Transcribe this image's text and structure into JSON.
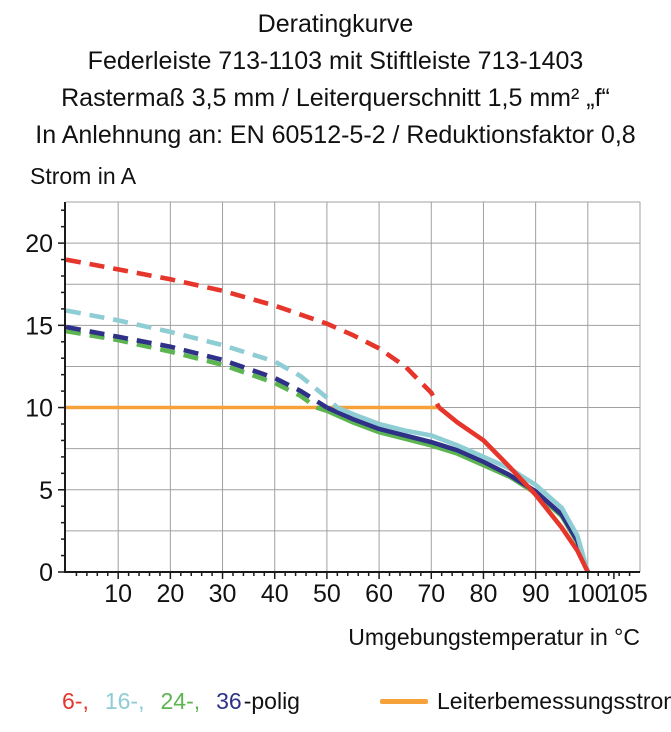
{
  "header": {
    "lines": [
      "Deratingkurve",
      "Federleiste 713-1103 mit Stiftleiste 713-1403",
      "Rastermaß 3,5 mm / Leiterquerschnitt 1,5 mm² „f“",
      "In Anlehnung an: EN 60512-5-2 / Reduktionsfaktor 0,8"
    ]
  },
  "chart_data": {
    "type": "line",
    "title": "Deratingkurve",
    "xlabel": "Umgebungstemperatur in °C",
    "ylabel": "Strom in A",
    "xlim": [
      0,
      110
    ],
    "ylim": [
      0,
      22.5
    ],
    "grid": {
      "on": true,
      "x_step": 10,
      "y_step": 2.5,
      "color": "#a0a0a0"
    },
    "axis_color": "#1a1a1a",
    "x_major_ticks": [
      10,
      20,
      30,
      40,
      50,
      60,
      70,
      80,
      90,
      100,
      105
    ],
    "x_minor_step": 2,
    "y_major_ticks": [
      0,
      5,
      10,
      15,
      20
    ],
    "y_minor_step": 1,
    "note": "dashed above rated current, solid below",
    "series": [
      {
        "name": "24-polig",
        "color": "#5cb550",
        "segments": [
          {
            "style": "dashed",
            "points": [
              [
                0,
                14.65
              ],
              [
                10,
                14.1
              ],
              [
                20,
                13.4
              ],
              [
                30,
                12.6
              ],
              [
                40,
                11.5
              ],
              [
                45,
                10.7
              ],
              [
                48,
                10.0
              ]
            ]
          },
          {
            "style": "solid",
            "points": [
              [
                48,
                10.0
              ],
              [
                50,
                9.8
              ],
              [
                55,
                9.1
              ],
              [
                60,
                8.5
              ],
              [
                65,
                8.1
              ],
              [
                70,
                7.7
              ],
              [
                75,
                7.2
              ],
              [
                80,
                6.5
              ],
              [
                85,
                5.8
              ],
              [
                90,
                4.8
              ],
              [
                95,
                3.4
              ],
              [
                98,
                1.8
              ],
              [
                100,
                0
              ]
            ]
          }
        ]
      },
      {
        "name": "36-polig",
        "color": "#2e3187",
        "segments": [
          {
            "style": "dashed",
            "points": [
              [
                0,
                14.9
              ],
              [
                10,
                14.3
              ],
              [
                20,
                13.7
              ],
              [
                30,
                12.9
              ],
              [
                40,
                11.8
              ],
              [
                45,
                11.0
              ],
              [
                50,
                10.0
              ]
            ]
          },
          {
            "style": "solid",
            "points": [
              [
                50,
                10.0
              ],
              [
                55,
                9.3
              ],
              [
                60,
                8.7
              ],
              [
                65,
                8.3
              ],
              [
                70,
                7.9
              ],
              [
                75,
                7.4
              ],
              [
                80,
                6.7
              ],
              [
                85,
                5.9
              ],
              [
                90,
                4.9
              ],
              [
                95,
                3.5
              ],
              [
                98,
                1.9
              ],
              [
                100,
                0
              ]
            ]
          }
        ]
      },
      {
        "name": "16-polig",
        "color": "#8ecdd3",
        "segments": [
          {
            "style": "dashed",
            "points": [
              [
                0,
                15.9
              ],
              [
                10,
                15.3
              ],
              [
                20,
                14.6
              ],
              [
                30,
                13.8
              ],
              [
                40,
                12.8
              ],
              [
                45,
                11.9
              ],
              [
                50,
                10.6
              ],
              [
                52,
                10.0
              ]
            ]
          },
          {
            "style": "solid",
            "points": [
              [
                52,
                10.0
              ],
              [
                55,
                9.6
              ],
              [
                60,
                9.0
              ],
              [
                65,
                8.6
              ],
              [
                70,
                8.3
              ],
              [
                75,
                7.7
              ],
              [
                80,
                7.0
              ],
              [
                85,
                6.3
              ],
              [
                90,
                5.3
              ],
              [
                95,
                3.9
              ],
              [
                98,
                2.2
              ],
              [
                100,
                0
              ]
            ]
          }
        ]
      },
      {
        "name": "6-polig",
        "color": "#e6352b",
        "segments": [
          {
            "style": "dashed",
            "points": [
              [
                0,
                19.0
              ],
              [
                10,
                18.4
              ],
              [
                20,
                17.8
              ],
              [
                30,
                17.1
              ],
              [
                40,
                16.2
              ],
              [
                50,
                15.1
              ],
              [
                55,
                14.4
              ],
              [
                60,
                13.6
              ],
              [
                65,
                12.5
              ],
              [
                70,
                10.9
              ],
              [
                71.5,
                10.0
              ]
            ]
          },
          {
            "style": "solid",
            "points": [
              [
                71.5,
                10.0
              ],
              [
                75,
                9.1
              ],
              [
                80,
                8.0
              ],
              [
                85,
                6.4
              ],
              [
                90,
                4.7
              ],
              [
                95,
                2.7
              ],
              [
                98,
                1.3
              ],
              [
                100,
                0
              ]
            ]
          }
        ]
      }
    ],
    "rated_current_line": {
      "name": "Leiterbemessungsstrom",
      "color": "#f6a139",
      "value": 10,
      "x_range": [
        0,
        71.5
      ]
    }
  },
  "legend": {
    "pole_items": [
      {
        "label": "6-,",
        "color": "#e6352b"
      },
      {
        "label": "16-,",
        "color": "#8ecdd3"
      },
      {
        "label": "24-,",
        "color": "#5cb550"
      },
      {
        "label": "36",
        "color": "#2e3187"
      }
    ],
    "suffix": "-polig",
    "rated": {
      "label": "Leiterbemessungsstrom",
      "color": "#f6a139"
    }
  }
}
